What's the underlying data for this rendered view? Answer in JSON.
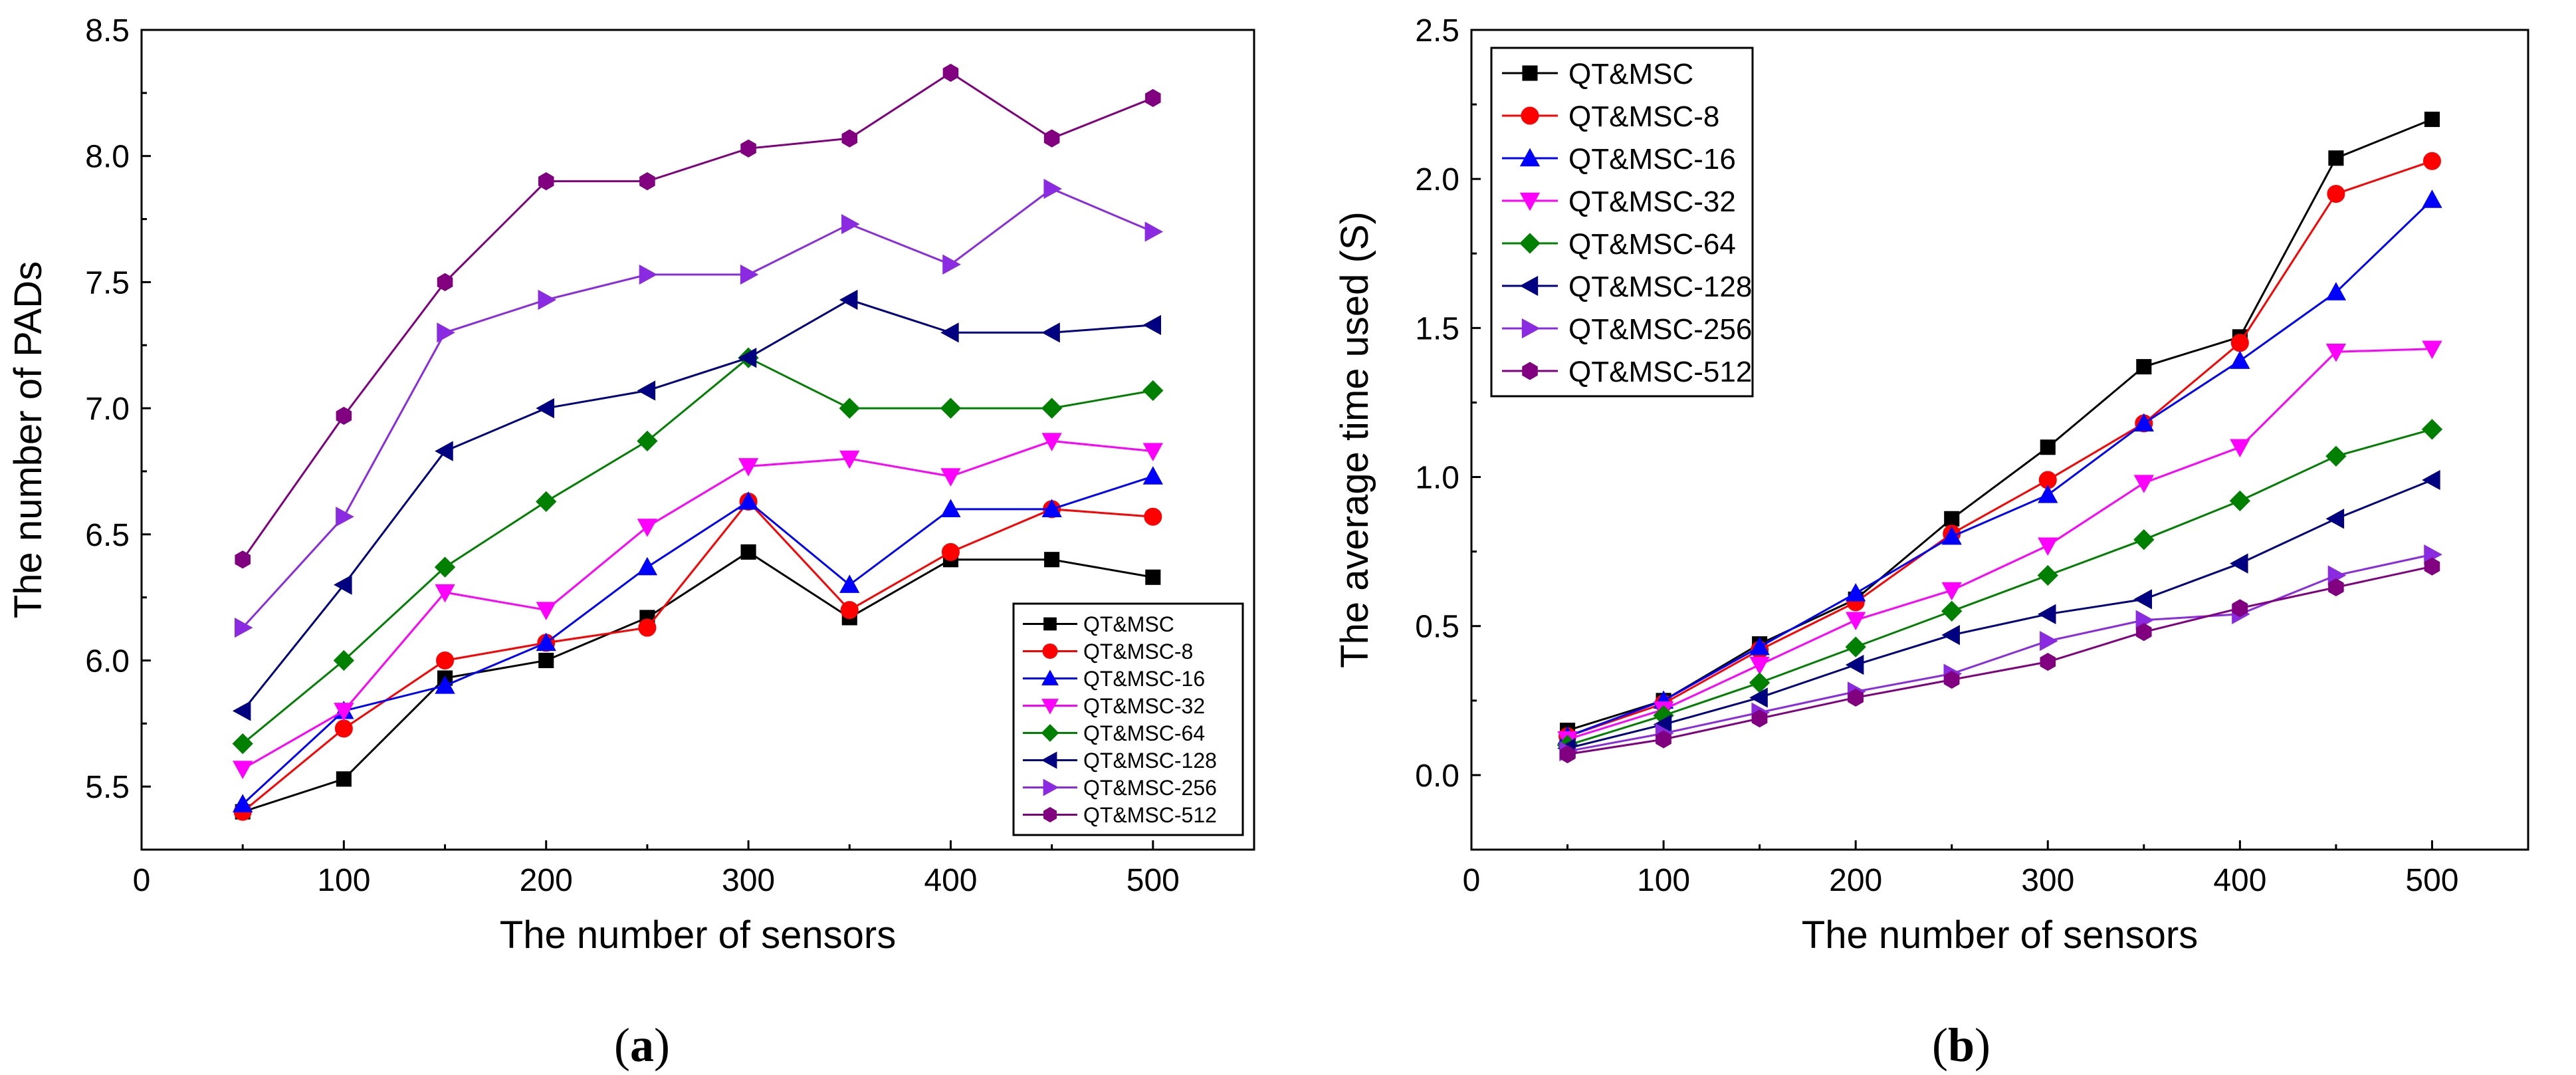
{
  "figure": {
    "captions": [
      {
        "open": "(",
        "letter": "a",
        "close": ")"
      },
      {
        "open": "(",
        "letter": "b",
        "close": ")"
      }
    ]
  },
  "chart_data": [
    {
      "type": "line",
      "title": "",
      "xlabel": "The number of sensors",
      "ylabel": "The number of PADs",
      "xlim": [
        0,
        550
      ],
      "ylim": [
        5.25,
        8.5
      ],
      "xticks": [
        0,
        100,
        200,
        300,
        400,
        500
      ],
      "yticks": [
        5.5,
        6.0,
        6.5,
        7.0,
        7.5,
        8.0,
        8.5
      ],
      "ytick_labels": [
        "5.5",
        "6.0",
        "6.5",
        "7.0",
        "7.5",
        "8.0",
        "8.5"
      ],
      "grid": false,
      "legend_position": "bottom-right",
      "x": [
        50,
        100,
        150,
        200,
        250,
        300,
        350,
        400,
        450,
        500
      ],
      "series": [
        {
          "name": "QT&MSC",
          "color": "#000000",
          "marker": "square",
          "values": [
            5.4,
            5.53,
            5.93,
            6.0,
            6.17,
            6.43,
            6.17,
            6.4,
            6.4,
            6.33
          ]
        },
        {
          "name": "QT&MSC-8",
          "color": "#ff0000",
          "marker": "circle",
          "values": [
            5.4,
            5.73,
            6.0,
            6.07,
            6.13,
            6.63,
            6.2,
            6.43,
            6.6,
            6.57
          ]
        },
        {
          "name": "QT&MSC-16",
          "color": "#0000ff",
          "marker": "triangle-up",
          "values": [
            5.43,
            5.8,
            5.9,
            6.07,
            6.37,
            6.63,
            6.3,
            6.6,
            6.6,
            6.73
          ]
        },
        {
          "name": "QT&MSC-32",
          "color": "#ff00ff",
          "marker": "triangle-down",
          "values": [
            5.57,
            5.8,
            6.27,
            6.2,
            6.53,
            6.77,
            6.8,
            6.73,
            6.87,
            6.83
          ]
        },
        {
          "name": "QT&MSC-64",
          "color": "#008000",
          "marker": "diamond",
          "values": [
            5.67,
            6.0,
            6.37,
            6.63,
            6.87,
            7.2,
            7.0,
            7.0,
            7.0,
            7.07
          ]
        },
        {
          "name": "QT&MSC-128",
          "color": "#000080",
          "marker": "triangle-left",
          "values": [
            5.8,
            6.3,
            6.83,
            7.0,
            7.07,
            7.2,
            7.43,
            7.3,
            7.3,
            7.33
          ]
        },
        {
          "name": "QT&MSC-256",
          "color": "#8a2be2",
          "marker": "triangle-right",
          "values": [
            6.13,
            6.57,
            7.3,
            7.43,
            7.53,
            7.53,
            7.73,
            7.57,
            7.87,
            7.7
          ]
        },
        {
          "name": "QT&MSC-512",
          "color": "#800080",
          "marker": "hexagon",
          "values": [
            6.4,
            6.97,
            7.5,
            7.9,
            7.9,
            8.03,
            8.07,
            8.33,
            8.07,
            8.23
          ]
        }
      ]
    },
    {
      "type": "line",
      "title": "",
      "xlabel": "The number of sensors",
      "ylabel": "The average time used (S)",
      "xlim": [
        0,
        550
      ],
      "ylim": [
        -0.25,
        2.5
      ],
      "xticks": [
        0,
        100,
        200,
        300,
        400,
        500
      ],
      "yticks": [
        0.0,
        0.5,
        1.0,
        1.5,
        2.0,
        2.5
      ],
      "ytick_labels": [
        "0.0",
        "0.5",
        "1.0",
        "1.5",
        "2.0",
        "2.5"
      ],
      "grid": false,
      "legend_position": "top-left",
      "x": [
        50,
        100,
        150,
        200,
        250,
        300,
        350,
        400,
        450,
        500
      ],
      "series": [
        {
          "name": "QT&MSC",
          "color": "#000000",
          "marker": "square",
          "values": [
            0.15,
            0.25,
            0.44,
            0.59,
            0.86,
            1.1,
            1.37,
            1.47,
            2.07,
            2.2
          ]
        },
        {
          "name": "QT&MSC-8",
          "color": "#ff0000",
          "marker": "circle",
          "values": [
            0.13,
            0.24,
            0.42,
            0.58,
            0.81,
            0.99,
            1.18,
            1.45,
            1.95,
            2.06
          ]
        },
        {
          "name": "QT&MSC-16",
          "color": "#0000ff",
          "marker": "triangle-up",
          "values": [
            0.13,
            0.25,
            0.43,
            0.61,
            0.8,
            0.94,
            1.18,
            1.39,
            1.62,
            1.93
          ]
        },
        {
          "name": "QT&MSC-32",
          "color": "#ff00ff",
          "marker": "triangle-down",
          "values": [
            0.12,
            0.22,
            0.37,
            0.52,
            0.62,
            0.77,
            0.98,
            1.1,
            1.42,
            1.43
          ]
        },
        {
          "name": "QT&MSC-64",
          "color": "#008000",
          "marker": "diamond",
          "values": [
            0.1,
            0.2,
            0.31,
            0.43,
            0.55,
            0.67,
            0.79,
            0.92,
            1.07,
            1.16
          ]
        },
        {
          "name": "QT&MSC-128",
          "color": "#000080",
          "marker": "triangle-left",
          "values": [
            0.09,
            0.17,
            0.26,
            0.37,
            0.47,
            0.54,
            0.59,
            0.71,
            0.86,
            0.99
          ]
        },
        {
          "name": "QT&MSC-256",
          "color": "#8a2be2",
          "marker": "triangle-right",
          "values": [
            0.08,
            0.14,
            0.21,
            0.28,
            0.34,
            0.45,
            0.52,
            0.54,
            0.67,
            0.74
          ]
        },
        {
          "name": "QT&MSC-512",
          "color": "#800080",
          "marker": "hexagon",
          "values": [
            0.07,
            0.12,
            0.19,
            0.26,
            0.32,
            0.38,
            0.48,
            0.56,
            0.63,
            0.7
          ]
        }
      ]
    }
  ]
}
